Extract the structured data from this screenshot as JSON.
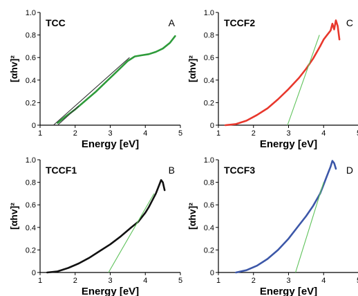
{
  "chart_data": [
    {
      "type": "line",
      "title": "TCC",
      "panel_label": "A",
      "xlabel": "Energy [eV]",
      "ylabel": "[αhv]²",
      "xlim": [
        1,
        5
      ],
      "ylim": [
        0,
        1.0
      ],
      "xticks": [
        "1",
        "2",
        "3",
        "4",
        "5"
      ],
      "yticks": [
        "0",
        "0.2",
        "0.4",
        "0.6",
        "0.8",
        "1.0"
      ],
      "data_color": "#2e9b3a",
      "fit_color": "#333333",
      "series": [
        {
          "role": "data",
          "x": [
            1.5,
            1.7,
            2.0,
            2.3,
            2.6,
            2.9,
            3.2,
            3.5,
            3.7,
            3.9,
            4.1,
            4.3,
            4.5,
            4.7,
            4.85
          ],
          "y": [
            0.02,
            0.07,
            0.14,
            0.22,
            0.3,
            0.39,
            0.48,
            0.57,
            0.61,
            0.62,
            0.63,
            0.65,
            0.68,
            0.73,
            0.79
          ]
        },
        {
          "role": "fit",
          "x": [
            1.38,
            3.55
          ],
          "y": [
            0.0,
            0.6
          ]
        },
        {
          "role": "fit",
          "x": [
            1.5,
            2.1
          ],
          "y": [
            0.0,
            0.17
          ]
        }
      ]
    },
    {
      "type": "line",
      "title": "TCCF2",
      "panel_label": "C",
      "xlabel": "Energy [eV]",
      "ylabel": "[αhv]²",
      "xlim": [
        1,
        5
      ],
      "ylim": [
        0,
        1.0
      ],
      "xticks": [
        "1",
        "2",
        "3",
        "4",
        "5"
      ],
      "yticks": [
        "0",
        "0.2",
        "0.4",
        "0.6",
        "0.8",
        "1.0"
      ],
      "data_color": "#e8372c",
      "fit_color": "#5ec25a",
      "series": [
        {
          "role": "data",
          "x": [
            1.2,
            1.5,
            1.8,
            2.1,
            2.4,
            2.7,
            3.0,
            3.3,
            3.5,
            3.7,
            3.9,
            4.0,
            4.1,
            4.2,
            4.25,
            4.3,
            4.35,
            4.4,
            4.45
          ],
          "y": [
            0.0,
            0.01,
            0.04,
            0.09,
            0.15,
            0.23,
            0.32,
            0.42,
            0.5,
            0.59,
            0.7,
            0.76,
            0.8,
            0.84,
            0.9,
            0.85,
            0.93,
            0.88,
            0.76
          ]
        },
        {
          "role": "fit",
          "x": [
            2.97,
            3.88
          ],
          "y": [
            0.0,
            0.8
          ]
        }
      ]
    },
    {
      "type": "line",
      "title": "TCCF1",
      "panel_label": "B",
      "xlabel": "Energy [eV]",
      "ylabel": "[αhv]²",
      "xlim": [
        1,
        5
      ],
      "ylim": [
        0,
        1.0
      ],
      "xticks": [
        "1",
        "2",
        "3",
        "4",
        "5"
      ],
      "yticks": [
        "0",
        "0.2",
        "0.4",
        "0.6",
        "0.8",
        "1.0"
      ],
      "data_color": "#111111",
      "fit_color": "#5ec25a",
      "series": [
        {
          "role": "data",
          "x": [
            1.2,
            1.5,
            1.8,
            2.1,
            2.4,
            2.7,
            3.0,
            3.3,
            3.6,
            3.8,
            4.0,
            4.1,
            4.2,
            4.3,
            4.4,
            4.45,
            4.5,
            4.55
          ],
          "y": [
            0.0,
            0.01,
            0.04,
            0.08,
            0.13,
            0.19,
            0.25,
            0.32,
            0.4,
            0.45,
            0.53,
            0.58,
            0.64,
            0.7,
            0.78,
            0.82,
            0.8,
            0.73
          ]
        },
        {
          "role": "fit",
          "x": [
            2.95,
            4.25
          ],
          "y": [
            0.0,
            0.7
          ]
        }
      ]
    },
    {
      "type": "line",
      "title": "TCCF3",
      "panel_label": "D",
      "xlabel": "Energy [eV]",
      "ylabel": "[αhv]²",
      "xlim": [
        1,
        5
      ],
      "ylim": [
        0,
        1.0
      ],
      "xticks": [
        "1",
        "2",
        "3",
        "4",
        "5"
      ],
      "yticks": [
        "0",
        "0.2",
        "0.4",
        "0.6",
        "0.8",
        "1.0"
      ],
      "data_color": "#3c57a8",
      "fit_color": "#5ec25a",
      "series": [
        {
          "role": "data",
          "x": [
            1.5,
            1.8,
            2.1,
            2.4,
            2.7,
            3.0,
            3.3,
            3.5,
            3.7,
            3.9,
            4.0,
            4.1,
            4.2,
            4.25,
            4.3,
            4.35
          ],
          "y": [
            0.0,
            0.02,
            0.06,
            0.12,
            0.2,
            0.3,
            0.42,
            0.5,
            0.59,
            0.7,
            0.78,
            0.86,
            0.94,
            0.99,
            0.97,
            0.92
          ]
        },
        {
          "role": "fit",
          "x": [
            3.2,
            4.0
          ],
          "y": [
            0.0,
            0.8
          ]
        }
      ]
    }
  ]
}
